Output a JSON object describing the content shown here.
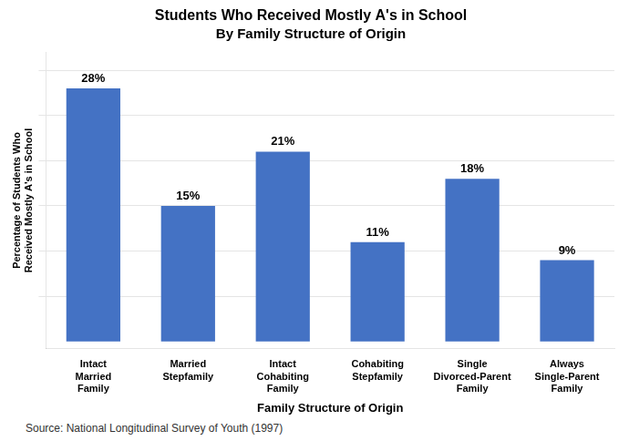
{
  "chart_data": {
    "type": "bar",
    "title": "Students Who Received Mostly A's in School",
    "subtitle": "By Family Structure of Origin",
    "categories": [
      "Intact\nMarried\nFamily",
      "Married\nStepfamily",
      "Intact\nCohabiting\nFamily",
      "Cohabiting\nStepfamily",
      "Single\nDivorced-Parent\nFamily",
      "Always\nSingle-Parent\nFamily"
    ],
    "values": [
      28,
      15,
      21,
      11,
      18,
      9
    ],
    "value_labels": [
      "28%",
      "15%",
      "21%",
      "11%",
      "18%",
      "9%"
    ],
    "data_labels": true,
    "color": "#4472C4",
    "xlabel": "Family Structure of Origin",
    "ylabel": "Percentage of Students Who\nReceived Mostly A's in School",
    "annotations": [
      "Source:  National Longitudinal Survey of Youth (1997)"
    ],
    "ylim": [
      -0.8,
      32
    ],
    "yticks": [
      5,
      10,
      15,
      20,
      25,
      30
    ],
    "grid": true,
    "tick_labels": "x"
  }
}
